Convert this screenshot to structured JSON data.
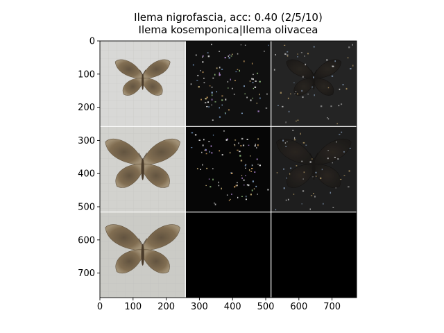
{
  "chart_data": {
    "type": "image-grid",
    "title_lines": [
      "Ilema nigrofascia, acc: 0.40 (2/5/10)",
      "Ilema kosemponica|Ilema olivacea"
    ],
    "xlim": [
      0,
      774
    ],
    "ylim": [
      774,
      0
    ],
    "xticks": [
      0,
      100,
      200,
      300,
      400,
      500,
      600,
      700
    ],
    "yticks": [
      0,
      100,
      200,
      300,
      400,
      500,
      600,
      700
    ],
    "grid_rows": 3,
    "grid_cols": 3,
    "cell_size": 258,
    "panels": [
      {
        "row": 0,
        "col": 0,
        "kind": "moth-photo",
        "background": "#d8d8d6"
      },
      {
        "row": 0,
        "col": 1,
        "kind": "saliency-sparse",
        "background": "#101010"
      },
      {
        "row": 0,
        "col": 2,
        "kind": "saliency-overlay",
        "background": "#242424"
      },
      {
        "row": 1,
        "col": 0,
        "kind": "moth-photo",
        "background": "#d2d2ce"
      },
      {
        "row": 1,
        "col": 1,
        "kind": "saliency-sparse",
        "background": "#060606"
      },
      {
        "row": 1,
        "col": 2,
        "kind": "saliency-overlay",
        "background": "#1e1e1e"
      },
      {
        "row": 2,
        "col": 0,
        "kind": "moth-photo",
        "background": "#cbcbc6"
      },
      {
        "row": 2,
        "col": 1,
        "kind": "blank",
        "background": "#000000"
      },
      {
        "row": 2,
        "col": 2,
        "kind": "blank",
        "background": "#000000"
      }
    ]
  }
}
